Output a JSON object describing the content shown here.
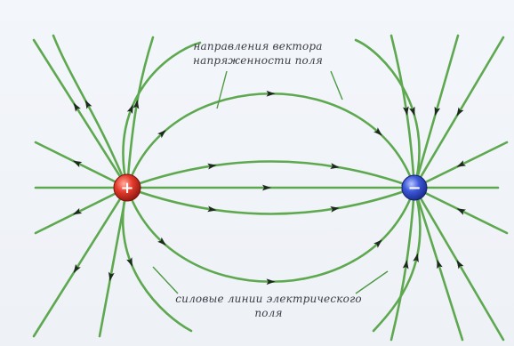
{
  "diagram": {
    "positive_sign": "+",
    "negative_sign": "−",
    "caption_top": [
      "направления вектора",
      "напряженности поля"
    ],
    "caption_bottom": [
      "силовые линии электрического",
      "поля"
    ],
    "colors": {
      "line": "#5ea850",
      "arrow": "#1c2b1c",
      "positive_charge": "#e53b2c",
      "negative_charge": "#3b56d8",
      "background": "#f2f5f9"
    }
  }
}
